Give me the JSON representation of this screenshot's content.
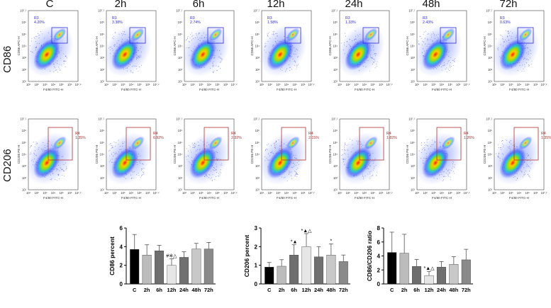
{
  "columns": [
    "C",
    "2h",
    "6h",
    "12h",
    "24h",
    "48h",
    "72h"
  ],
  "rows": [
    {
      "label": "CD86",
      "ylabel": "CD86 APC-H",
      "xlabel": "F4/80 FITC-H",
      "gate": "R3",
      "percents": [
        "4.20%",
        "3.38%",
        "2.74%",
        "1.58%",
        "1.33%",
        "2.43%",
        "0.63%"
      ],
      "gate_color": "#2b2bd6"
    },
    {
      "label": "CD206",
      "ylabel": "CD206 PE-H",
      "xlabel": "F4/80 FITC-H",
      "gate": "R4",
      "percents": [
        "1.35%",
        "6.92%",
        "2.32%",
        "2.15%",
        "1.82%",
        "1.26%",
        "1.35%"
      ],
      "gate_color": "#b03030"
    }
  ],
  "flow_axis_ticks": [
    "10¹",
    "10²",
    "10³",
    "10⁴",
    "10⁵",
    "10⁶",
    "10⁷.²"
  ],
  "chart_data": [
    {
      "type": "bar",
      "categories": [
        "C",
        "2h",
        "6h",
        "12h",
        "24h",
        "48h",
        "72h"
      ],
      "values": [
        3.7,
        3.1,
        3.55,
        2.0,
        2.85,
        3.75,
        3.75
      ],
      "errors": [
        1.6,
        1.1,
        0.6,
        0.7,
        0.6,
        0.6,
        0.7
      ],
      "annotations": [
        {
          "index": 3,
          "text": "#※△"
        }
      ],
      "ylabel": "CD86 percent",
      "ylim": [
        0,
        6
      ],
      "yticks": [
        "0",
        "2",
        "4",
        "6"
      ],
      "colors": [
        "#000000",
        "#bcbcbc",
        "#6e6e6e",
        "#e6e6e6",
        "#707070",
        "#c8c8c8",
        "#8a8a8a"
      ]
    },
    {
      "type": "bar",
      "categories": [
        "C",
        "2h",
        "6h",
        "12h",
        "24h",
        "48h",
        "72h"
      ],
      "values": [
        0.9,
        0.95,
        1.55,
        2.0,
        1.45,
        1.55,
        1.2
      ],
      "errors": [
        0.25,
        0.35,
        0.55,
        0.7,
        0.55,
        0.6,
        0.35
      ],
      "annotations": [
        {
          "index": 2,
          "text": "*▲"
        },
        {
          "index": 3,
          "text": "*▲△"
        },
        {
          "index": 5,
          "text": "*"
        }
      ],
      "ylabel": "CD206 percent",
      "ylim": [
        0,
        3
      ],
      "yticks": [
        "0",
        "1",
        "2",
        "3"
      ],
      "colors": [
        "#000000",
        "#bcbcbc",
        "#6e6e6e",
        "#e6e6e6",
        "#707070",
        "#c8c8c8",
        "#8a8a8a"
      ]
    },
    {
      "type": "bar",
      "categories": [
        "C",
        "2h",
        "6h",
        "12h",
        "24h",
        "48h",
        "72h"
      ],
      "values": [
        4.5,
        4.4,
        2.5,
        1.2,
        2.4,
        2.8,
        3.45
      ],
      "errors": [
        2.9,
        2.7,
        1.0,
        0.6,
        0.8,
        1.1,
        1.5
      ],
      "annotations": [
        {
          "index": 3,
          "text": "*▲△"
        }
      ],
      "ylabel": "CD86/CD206 ratio",
      "ylim": [
        0,
        8
      ],
      "yticks": [
        "0",
        "2",
        "4",
        "6",
        "8"
      ],
      "colors": [
        "#000000",
        "#bcbcbc",
        "#6e6e6e",
        "#e6e6e6",
        "#707070",
        "#c8c8c8",
        "#8a8a8a"
      ]
    }
  ]
}
